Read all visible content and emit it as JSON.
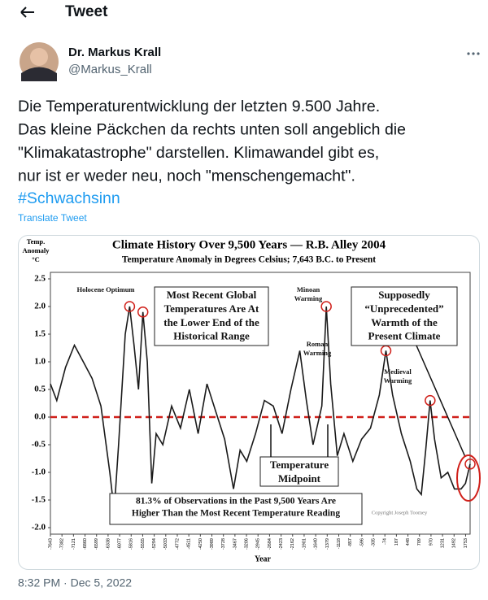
{
  "header": {
    "title": "Tweet"
  },
  "user": {
    "name": "Dr. Markus Krall",
    "handle": "@Markus_Krall"
  },
  "tweet": {
    "lines": [
      "Die Temperaturentwicklung der letzten 9.500 Jahre.",
      "Das kleine Päckchen da rechts unten soll angeblich die",
      "\"Klimakatastrophe\" darstellen. Klimawandel gibt es,",
      "nur ist er weder neu, noch \"menschengemacht\"."
    ],
    "hashtag": "#Schwachsinn",
    "translate": "Translate Tweet",
    "timestamp": "8:32 PM · Dec 5, 2022"
  },
  "chart_data": {
    "type": "line",
    "title": "Climate History Over 9,500 Years — R.B. Alley 2004",
    "subtitle": "Temperature Anomaly in Degrees Celsius; 7,643 B.C. to Present",
    "ylabel": [
      "Temp.",
      "Anomaly",
      "°C"
    ],
    "xlabel": "Year",
    "color": "#1a1a1a",
    "x": [
      -7643,
      -7500,
      -7300,
      -7100,
      -6900,
      -6700,
      -6500,
      -6300,
      -6200,
      -6100,
      -5950,
      -5850,
      -5750,
      -5650,
      -5550,
      -5450,
      -5350,
      -5250,
      -5100,
      -4900,
      -4700,
      -4500,
      -4300,
      -4100,
      -3900,
      -3700,
      -3500,
      -3350,
      -3200,
      -3000,
      -2800,
      -2600,
      -2400,
      -2200,
      -2000,
      -1850,
      -1700,
      -1500,
      -1400,
      -1300,
      -1150,
      -1000,
      -800,
      -600,
      -400,
      -200,
      -50,
      100,
      300,
      500,
      650,
      750,
      850,
      950,
      1050,
      1200,
      1350,
      1500,
      1650,
      1750,
      1855
    ],
    "values": [
      0.6,
      0.3,
      0.9,
      1.3,
      1.0,
      0.7,
      0.2,
      -1.0,
      -1.7,
      -0.5,
      1.5,
      2.0,
      1.3,
      0.5,
      1.9,
      1.0,
      -1.2,
      -0.3,
      -0.5,
      0.2,
      -0.2,
      0.5,
      -0.3,
      0.6,
      0.1,
      -0.4,
      -1.3,
      -0.6,
      -0.8,
      -0.3,
      0.3,
      0.2,
      -0.3,
      0.5,
      1.2,
      0.3,
      -0.5,
      0.2,
      2.0,
      0.6,
      -0.7,
      -0.3,
      -0.8,
      -0.4,
      -0.2,
      0.4,
      1.2,
      0.4,
      -0.3,
      -0.8,
      -1.3,
      -1.4,
      -0.6,
      0.3,
      -0.4,
      -1.1,
      -1.0,
      -1.3,
      -1.3,
      -1.2,
      -0.85
    ],
    "xlim": [
      -7643,
      1855
    ],
    "ylim": [
      -2,
      2.5
    ],
    "yticks": [
      2.5,
      {
        "value": 2,
        "label": "2.0"
      },
      1.5,
      {
        "value": 1,
        "label": "1.0"
      },
      0.5,
      {
        "value": 0,
        "label": "0.0"
      },
      -0.5,
      {
        "value": -1,
        "label": "-1.0"
      },
      -1.5,
      {
        "value": -2,
        "label": "-2.0"
      }
    ],
    "xticks": [
      -7643,
      -7382,
      -7121,
      -6860,
      -6599,
      -6338,
      -6077,
      -5816,
      -5555,
      -5294,
      -5033,
      -4772,
      -4511,
      -4250,
      -3989,
      -3728,
      -3467,
      -3206,
      -2945,
      -2684,
      -2423,
      -2162,
      -1901,
      -1640,
      -1379,
      -1118,
      -857,
      -596,
      -335,
      -74,
      187,
      448,
      709,
      970,
      1231,
      1492,
      1753
    ],
    "annotations": [
      {
        "lines": [
          "Holocene Optimum"
        ]
      },
      {
        "lines": [
          "Most Recent Global",
          "Temperatures Are At",
          "the Lower End of the",
          "Historical Range"
        ]
      },
      {
        "lines": [
          "Minoan",
          "Warming"
        ]
      },
      {
        "lines": [
          "Roman",
          "Warming"
        ]
      },
      {
        "lines": [
          "Medieval",
          "Warming"
        ]
      },
      {
        "lines": [
          "Supposedly",
          "“Unprecedented”",
          "Warmth of the",
          "Present Climate"
        ]
      },
      {
        "lines": [
          "Temperature",
          "Midpoint"
        ]
      },
      {
        "lines": [
          "81.3% of Observations in the Past 9,500 Years Are",
          "Higher Than the Most Recent Temperature Reading"
        ]
      },
      {
        "lines": [
          "Copyright Joseph Toomey"
        ]
      }
    ]
  }
}
